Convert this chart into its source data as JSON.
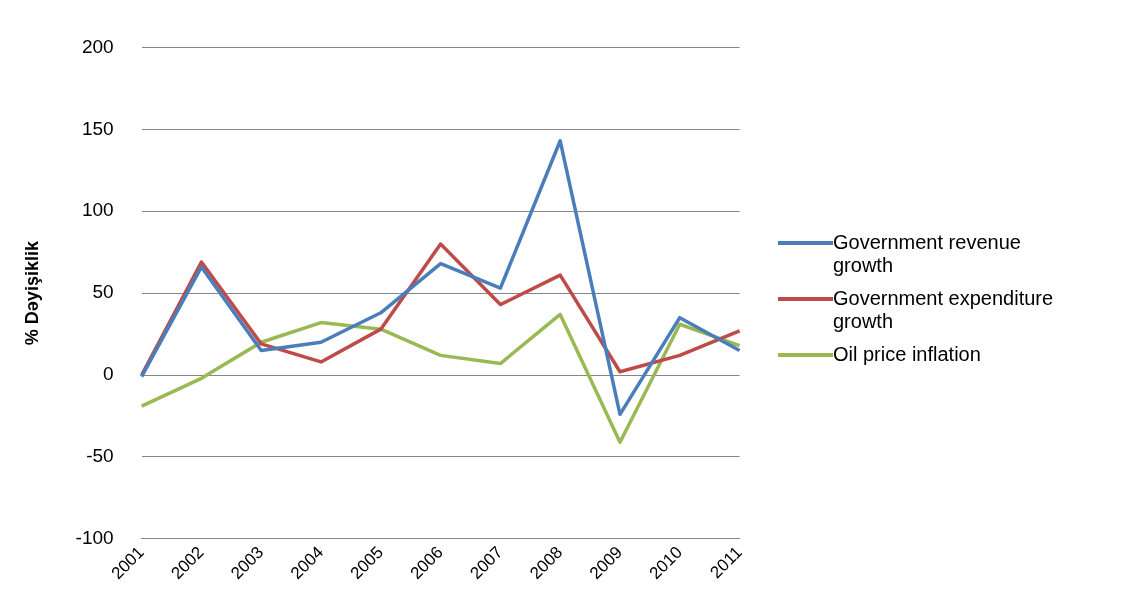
{
  "chart_data": {
    "type": "line",
    "ylabel": "% Dəyişiklik",
    "categories": [
      "2001",
      "2002",
      "2003",
      "2004",
      "2005",
      "2006",
      "2007",
      "2008",
      "2009",
      "2010",
      "2011"
    ],
    "series": [
      {
        "name": "Government revenue growth",
        "color": "#4a7ebb",
        "values": [
          -1,
          66,
          15,
          20,
          38,
          68,
          53,
          143,
          -24,
          35,
          15
        ]
      },
      {
        "name": "Government expenditure growth",
        "color": "#be4b48",
        "values": [
          0,
          69,
          19,
          8,
          28,
          80,
          43,
          61,
          2,
          12,
          27
        ]
      },
      {
        "name": "Oil price inflation",
        "color": "#98b954",
        "values": [
          -19,
          -2,
          20,
          32,
          28,
          12,
          7,
          37,
          -41,
          31,
          18
        ]
      }
    ],
    "ylim": [
      -100,
      200
    ],
    "yticks": [
      -100,
      -50,
      0,
      50,
      100,
      150,
      200
    ],
    "grid": "y",
    "legend": "right",
    "marker": "none",
    "line_style": "solid"
  }
}
